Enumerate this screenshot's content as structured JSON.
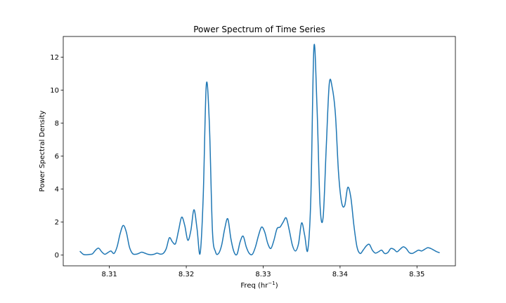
{
  "chart_data": {
    "type": "line",
    "title": "Power Spectrum of Time Series",
    "xlabel": "Freq (hr",
    "xlabel_superscript": "−1",
    "xlabel_suffix": ")",
    "ylabel": "Power Spectral Density",
    "xlim": [
      8.304,
      8.355
    ],
    "ylim": [
      -0.65,
      13.25
    ],
    "xticks": [
      8.31,
      8.32,
      8.33,
      8.34,
      8.35
    ],
    "xtick_labels": [
      "8.31",
      "8.32",
      "8.33",
      "8.34",
      "8.35"
    ],
    "yticks": [
      0,
      2,
      4,
      6,
      8,
      10,
      12
    ],
    "ytick_labels": [
      "0",
      "2",
      "4",
      "6",
      "8",
      "10",
      "12"
    ],
    "grid": false,
    "line_color": "#1f77b4",
    "series": [
      {
        "x": [
          8.3062,
          8.3066,
          8.307,
          8.3074,
          8.3078,
          8.3082,
          8.3086,
          8.309,
          8.3094,
          8.3098,
          8.3102,
          8.3106,
          8.311,
          8.3114,
          8.3118,
          8.3122,
          8.3126,
          8.313,
          8.3134,
          8.3138,
          8.3142,
          8.3146,
          8.315,
          8.3154,
          8.3158,
          8.3162,
          8.3166,
          8.317,
          8.3174,
          8.3178,
          8.3182,
          8.3186,
          8.319,
          8.3194,
          8.3198,
          8.3202,
          8.3206,
          8.321,
          8.3214,
          8.3218,
          8.3222,
          8.3226,
          8.323,
          8.3234,
          8.3238,
          8.3242,
          8.3246,
          8.325,
          8.3254,
          8.3258,
          8.3262,
          8.3266,
          8.327,
          8.3274,
          8.3278,
          8.3282,
          8.3286,
          8.329,
          8.3294,
          8.3298,
          8.3302,
          8.3306,
          8.331,
          8.3314,
          8.3318,
          8.3322,
          8.3326,
          8.333,
          8.3334,
          8.3338,
          8.3342,
          8.3346,
          8.335,
          8.3354,
          8.3358,
          8.3362,
          8.3366,
          8.337,
          8.3374,
          8.3378,
          8.3382,
          8.3386,
          8.339,
          8.3394,
          8.3398,
          8.3402,
          8.3406,
          8.341,
          8.3414,
          8.3418,
          8.3422,
          8.3426,
          8.343,
          8.3434,
          8.3438,
          8.3442,
          8.3446,
          8.345,
          8.3454,
          8.3458,
          8.3462,
          8.3466,
          8.347,
          8.3474,
          8.3478,
          8.3482,
          8.3486,
          8.349,
          8.3494,
          8.3498,
          8.3502,
          8.3506,
          8.351,
          8.3514,
          8.3518,
          8.3522,
          8.3526,
          8.3529
        ],
        "y": [
          0.22,
          0.05,
          0.02,
          0.04,
          0.08,
          0.3,
          0.42,
          0.2,
          0.05,
          0.15,
          0.25,
          0.1,
          0.5,
          1.3,
          1.8,
          1.4,
          0.5,
          0.1,
          0.05,
          0.1,
          0.18,
          0.12,
          0.05,
          0.02,
          0.05,
          0.12,
          0.06,
          0.1,
          0.4,
          1.05,
          0.8,
          0.7,
          1.5,
          2.3,
          1.8,
          0.9,
          1.5,
          2.75,
          1.6,
          0.1,
          3.5,
          10.3,
          8.0,
          1.5,
          0.2,
          0.1,
          0.6,
          1.6,
          2.2,
          1.0,
          0.2,
          0.05,
          0.8,
          1.15,
          0.5,
          0.1,
          0.05,
          0.5,
          1.2,
          1.7,
          1.4,
          0.7,
          0.4,
          0.9,
          1.6,
          1.7,
          2.0,
          2.25,
          1.5,
          0.6,
          0.25,
          0.7,
          1.95,
          1.2,
          0.3,
          3.5,
          12.6,
          9.0,
          3.0,
          2.3,
          6.5,
          10.4,
          10.1,
          8.5,
          5.0,
          3.2,
          3.0,
          4.1,
          3.5,
          1.8,
          0.5,
          0.1,
          0.3,
          0.55,
          0.65,
          0.3,
          0.12,
          0.2,
          0.3,
          0.1,
          0.15,
          0.4,
          0.35,
          0.2,
          0.35,
          0.5,
          0.4,
          0.15,
          0.1,
          0.2,
          0.3,
          0.25,
          0.35,
          0.45,
          0.4,
          0.3,
          0.2,
          0.15
        ]
      }
    ]
  }
}
